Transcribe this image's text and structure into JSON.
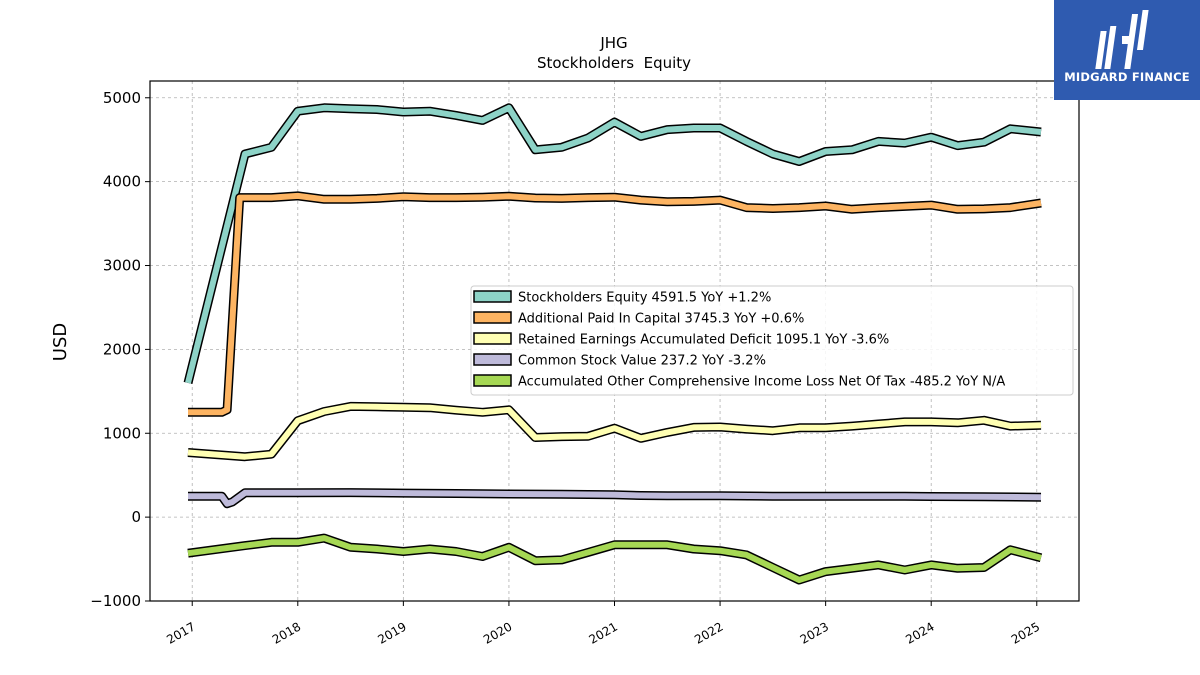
{
  "chart_data": {
    "type": "line",
    "title": "JHG",
    "subtitle": "Stockholders  Equity",
    "xlabel": "",
    "ylabel": "USD",
    "ylim": [
      -1000,
      5200
    ],
    "yticks": [
      -1000,
      0,
      1000,
      2000,
      3000,
      4000,
      5000
    ],
    "ytick_labels": [
      "−1000",
      "0",
      "1000",
      "2000",
      "3000",
      "4000",
      "5000"
    ],
    "xlim": [
      2016.6,
      2025.4
    ],
    "xticks": [
      2017,
      2018,
      2019,
      2020,
      2021,
      2022,
      2023,
      2024,
      2025
    ],
    "xtick_labels": [
      "2017",
      "2018",
      "2019",
      "2020",
      "2021",
      "2022",
      "2023",
      "2024",
      "2025"
    ],
    "grid": true,
    "legend_position": "center-right",
    "series": [
      {
        "name": "Stockholders Equity",
        "legend": "Stockholders Equity  4591.5 YoY +1.2%",
        "color": "#8dd3c7",
        "points": [
          [
            2016.96,
            1600
          ],
          [
            2017.5,
            4330
          ],
          [
            2017.75,
            4410
          ],
          [
            2018.0,
            4840
          ],
          [
            2018.25,
            4880
          ],
          [
            2018.5,
            4870
          ],
          [
            2018.75,
            4860
          ],
          [
            2019.0,
            4830
          ],
          [
            2019.25,
            4840
          ],
          [
            2019.5,
            4790
          ],
          [
            2019.75,
            4730
          ],
          [
            2020.0,
            4880
          ],
          [
            2020.25,
            4380
          ],
          [
            2020.5,
            4410
          ],
          [
            2020.75,
            4520
          ],
          [
            2021.0,
            4710
          ],
          [
            2021.25,
            4540
          ],
          [
            2021.5,
            4620
          ],
          [
            2021.75,
            4640
          ],
          [
            2022.0,
            4640
          ],
          [
            2022.25,
            4480
          ],
          [
            2022.5,
            4330
          ],
          [
            2022.75,
            4240
          ],
          [
            2023.0,
            4360
          ],
          [
            2023.25,
            4380
          ],
          [
            2023.5,
            4480
          ],
          [
            2023.75,
            4460
          ],
          [
            2024.0,
            4530
          ],
          [
            2024.25,
            4430
          ],
          [
            2024.5,
            4470
          ],
          [
            2024.75,
            4630
          ],
          [
            2025.04,
            4591.5
          ]
        ]
      },
      {
        "name": "Additional Paid In Capital",
        "legend": "Additional Paid In Capital  3745.3 YoY +0.6%",
        "color": "#fdb462",
        "points": [
          [
            2016.96,
            1250
          ],
          [
            2017.28,
            1250
          ],
          [
            2017.33,
            1280
          ],
          [
            2017.45,
            3810
          ],
          [
            2017.75,
            3810
          ],
          [
            2018.0,
            3830
          ],
          [
            2018.25,
            3790
          ],
          [
            2018.5,
            3790
          ],
          [
            2018.75,
            3800
          ],
          [
            2019.0,
            3820
          ],
          [
            2019.25,
            3810
          ],
          [
            2019.5,
            3810
          ],
          [
            2019.75,
            3815
          ],
          [
            2020.0,
            3825
          ],
          [
            2020.25,
            3805
          ],
          [
            2020.5,
            3800
          ],
          [
            2020.75,
            3810
          ],
          [
            2021.0,
            3815
          ],
          [
            2021.25,
            3780
          ],
          [
            2021.5,
            3760
          ],
          [
            2021.75,
            3765
          ],
          [
            2022.0,
            3780
          ],
          [
            2022.25,
            3690
          ],
          [
            2022.5,
            3680
          ],
          [
            2022.75,
            3690
          ],
          [
            2023.0,
            3710
          ],
          [
            2023.25,
            3670
          ],
          [
            2023.5,
            3690
          ],
          [
            2023.75,
            3705
          ],
          [
            2024.0,
            3720
          ],
          [
            2024.25,
            3670
          ],
          [
            2024.5,
            3675
          ],
          [
            2024.75,
            3690
          ],
          [
            2025.04,
            3745.3
          ]
        ]
      },
      {
        "name": "Retained Earnings Accumulated Deficit",
        "legend": "Retained Earnings Accumulated Deficit  1095.1 YoY -3.6%",
        "color": "#ffffb3",
        "points": [
          [
            2016.96,
            770
          ],
          [
            2017.5,
            720
          ],
          [
            2017.75,
            750
          ],
          [
            2018.0,
            1150
          ],
          [
            2018.25,
            1260
          ],
          [
            2018.5,
            1320
          ],
          [
            2018.75,
            1315
          ],
          [
            2019.0,
            1310
          ],
          [
            2019.25,
            1305
          ],
          [
            2019.5,
            1275
          ],
          [
            2019.75,
            1250
          ],
          [
            2020.0,
            1280
          ],
          [
            2020.25,
            950
          ],
          [
            2020.5,
            960
          ],
          [
            2020.75,
            965
          ],
          [
            2021.0,
            1060
          ],
          [
            2021.25,
            940
          ],
          [
            2021.5,
            1010
          ],
          [
            2021.75,
            1070
          ],
          [
            2022.0,
            1075
          ],
          [
            2022.25,
            1050
          ],
          [
            2022.5,
            1030
          ],
          [
            2022.75,
            1065
          ],
          [
            2023.0,
            1065
          ],
          [
            2023.25,
            1085
          ],
          [
            2023.5,
            1110
          ],
          [
            2023.75,
            1135
          ],
          [
            2024.0,
            1135
          ],
          [
            2024.25,
            1125
          ],
          [
            2024.5,
            1155
          ],
          [
            2024.75,
            1085
          ],
          [
            2025.04,
            1095.1
          ]
        ]
      },
      {
        "name": "Common Stock Value",
        "legend": "Common Stock Value  237.2 YoY -3.2%",
        "color": "#bebada",
        "points": [
          [
            2016.96,
            250
          ],
          [
            2017.28,
            250
          ],
          [
            2017.33,
            160
          ],
          [
            2017.38,
            180
          ],
          [
            2017.5,
            290
          ],
          [
            2018.0,
            290
          ],
          [
            2018.5,
            292
          ],
          [
            2019.0,
            286
          ],
          [
            2019.5,
            282
          ],
          [
            2020.0,
            276
          ],
          [
            2020.5,
            272
          ],
          [
            2021.0,
            266
          ],
          [
            2021.25,
            258
          ],
          [
            2021.5,
            256
          ],
          [
            2022.0,
            254
          ],
          [
            2022.5,
            250
          ],
          [
            2023.0,
            250
          ],
          [
            2023.5,
            250
          ],
          [
            2023.75,
            250
          ],
          [
            2024.0,
            246
          ],
          [
            2024.5,
            242
          ],
          [
            2025.04,
            237.2
          ]
        ]
      },
      {
        "name": "Accumulated Other Comprehensive Income Loss Net Of Tax",
        "legend": "Accumulated Other Comprehensive Income Loss Net Of Tax  -485.2 YoY N/A",
        "color": "#a6d854",
        "points": [
          [
            2016.96,
            -430
          ],
          [
            2017.5,
            -340
          ],
          [
            2017.75,
            -300
          ],
          [
            2018.0,
            -300
          ],
          [
            2018.25,
            -250
          ],
          [
            2018.5,
            -360
          ],
          [
            2018.75,
            -380
          ],
          [
            2019.0,
            -410
          ],
          [
            2019.25,
            -380
          ],
          [
            2019.5,
            -410
          ],
          [
            2019.75,
            -470
          ],
          [
            2020.0,
            -360
          ],
          [
            2020.25,
            -520
          ],
          [
            2020.5,
            -510
          ],
          [
            2020.75,
            -420
          ],
          [
            2021.0,
            -330
          ],
          [
            2021.25,
            -330
          ],
          [
            2021.5,
            -330
          ],
          [
            2021.75,
            -380
          ],
          [
            2022.0,
            -400
          ],
          [
            2022.25,
            -450
          ],
          [
            2022.5,
            -600
          ],
          [
            2022.75,
            -750
          ],
          [
            2023.0,
            -650
          ],
          [
            2023.25,
            -610
          ],
          [
            2023.5,
            -570
          ],
          [
            2023.75,
            -630
          ],
          [
            2024.0,
            -570
          ],
          [
            2024.25,
            -610
          ],
          [
            2024.5,
            -600
          ],
          [
            2024.75,
            -390
          ],
          [
            2025.04,
            -485.2
          ]
        ]
      }
    ]
  },
  "logo": {
    "text": "MIDGARD FINANCE"
  }
}
